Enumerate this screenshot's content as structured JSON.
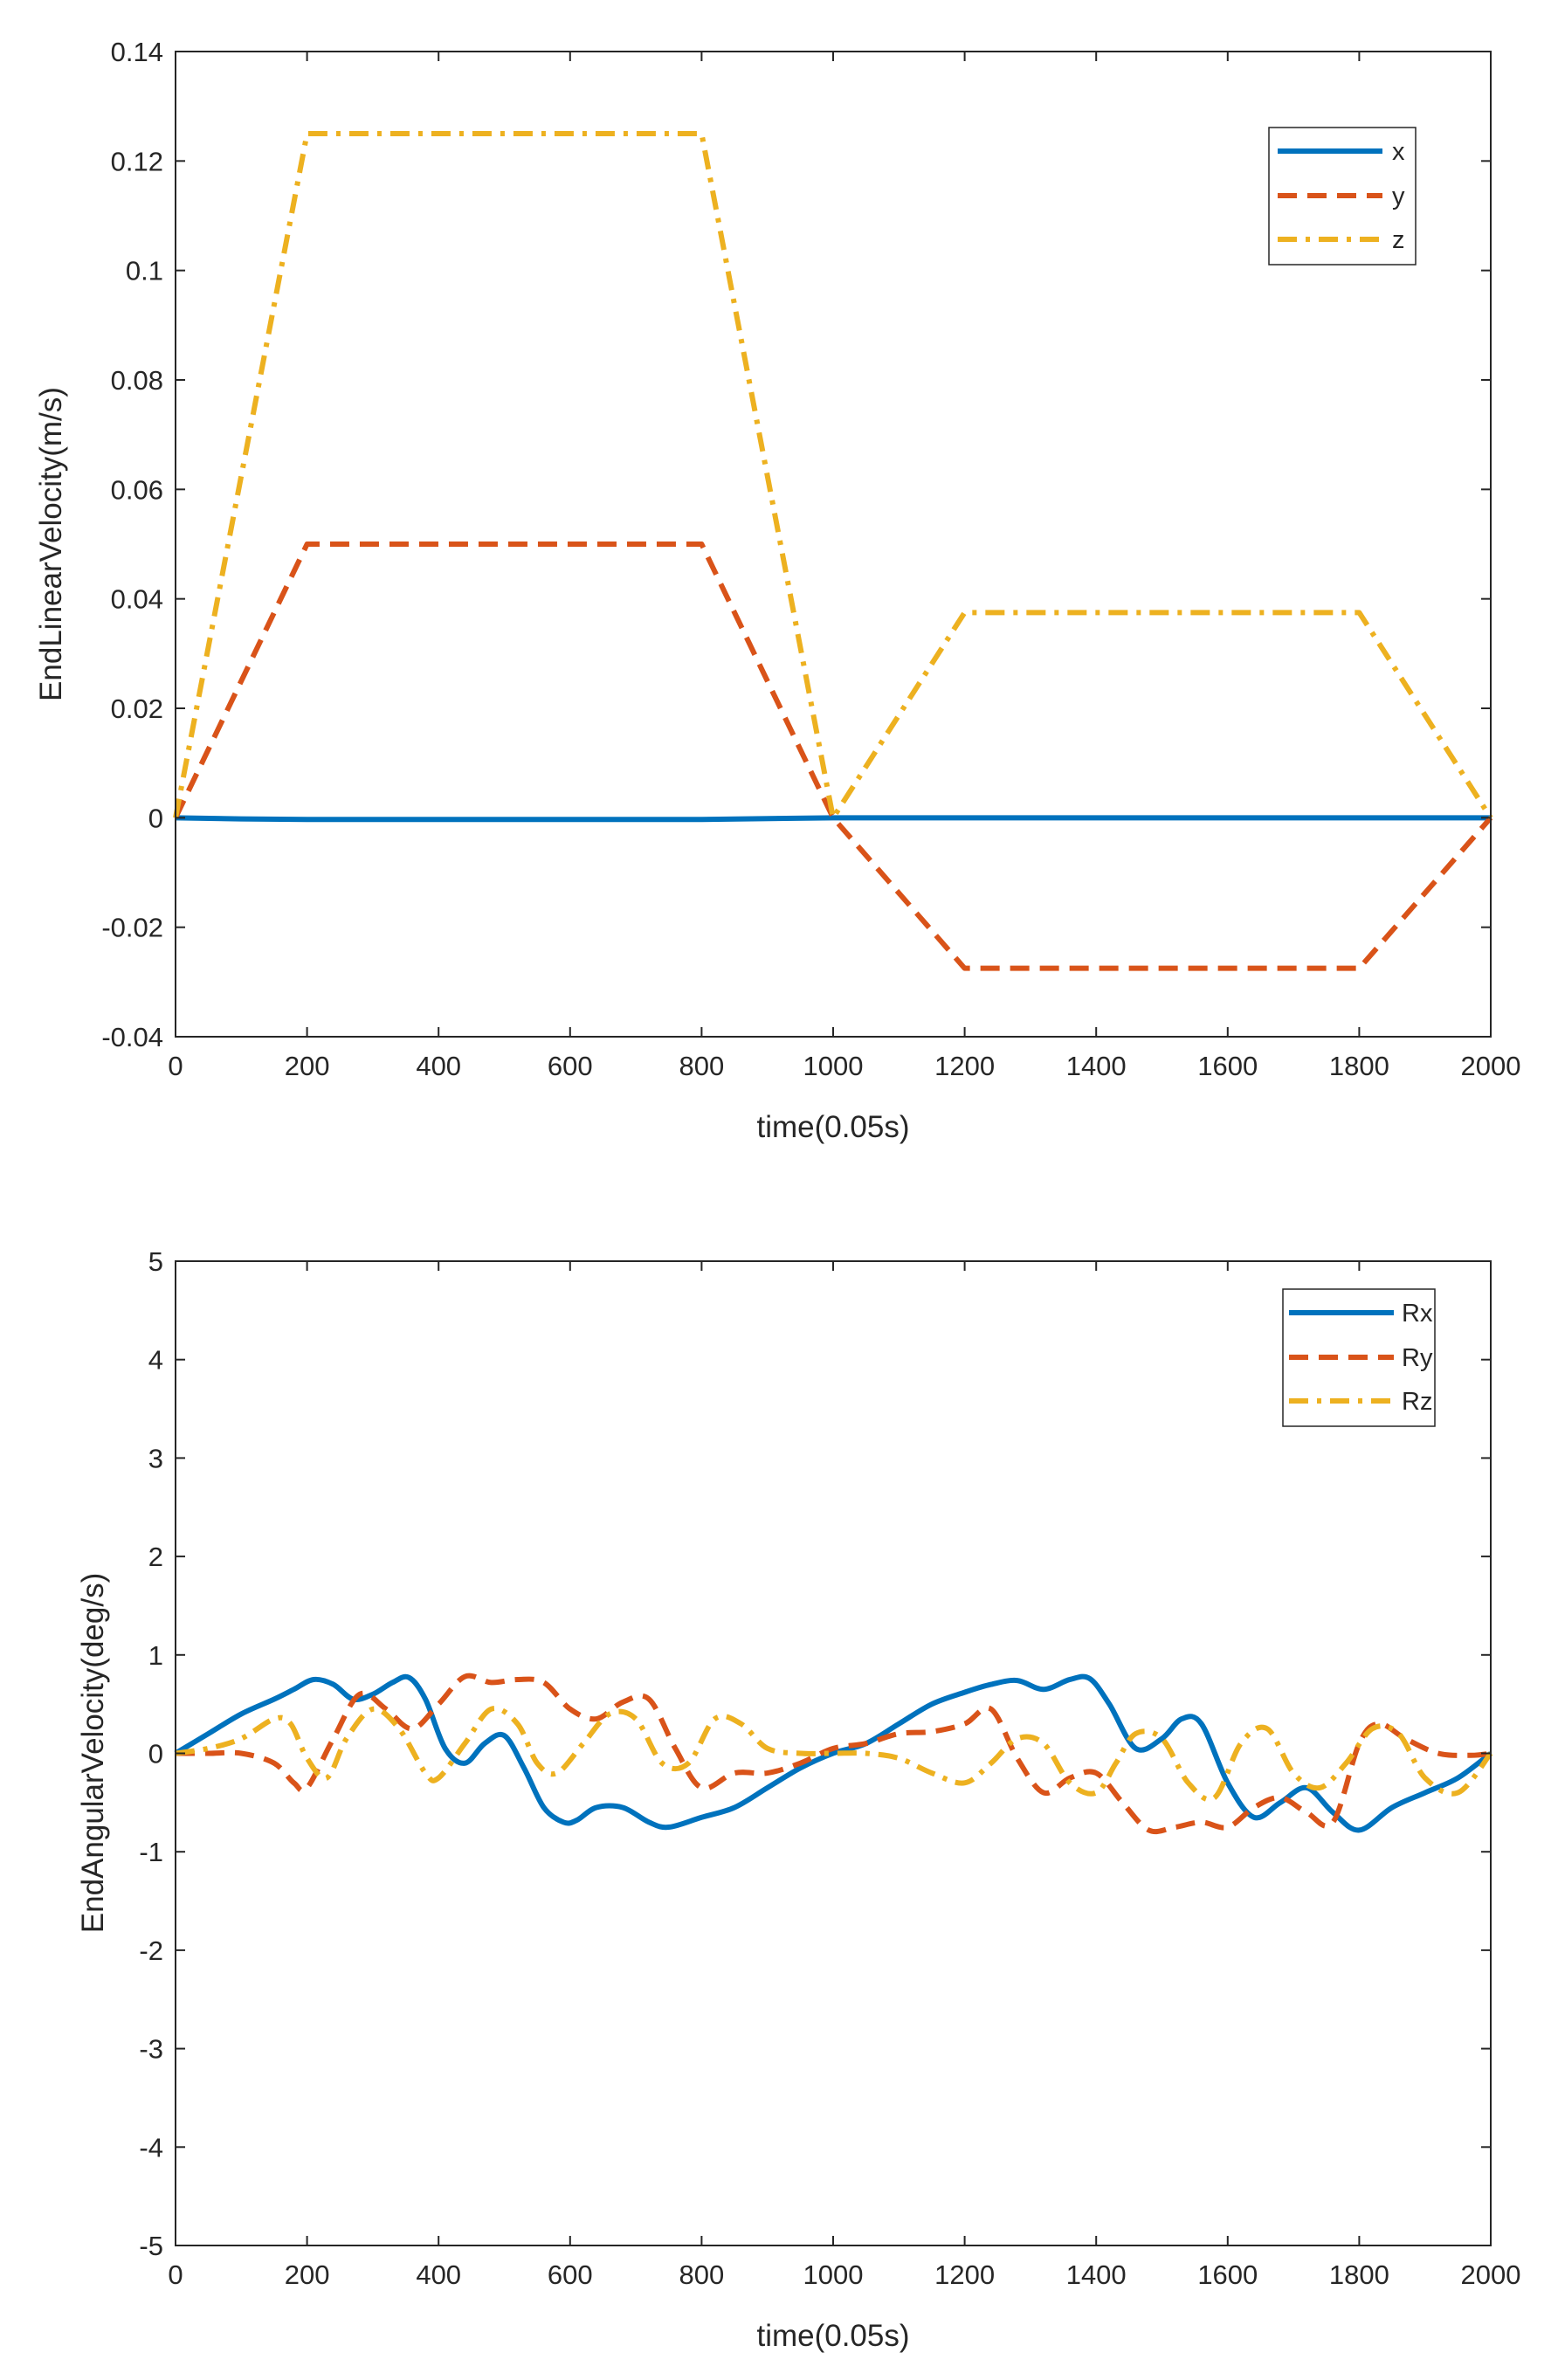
{
  "colors": {
    "blue": "#0072BD",
    "orange": "#D95319",
    "yellow": "#EDB120",
    "axis": "#262626"
  },
  "chart_data": [
    {
      "type": "line",
      "xlabel": "time(0.05s)",
      "ylabel": "EndLinearVelocity(m/s)",
      "xlim": [
        0,
        2000
      ],
      "ylim": [
        -0.04,
        0.14
      ],
      "grid": false,
      "legend_position": "top-right",
      "xticks": [
        0,
        200,
        400,
        600,
        800,
        1000,
        1200,
        1400,
        1600,
        1800,
        2000
      ],
      "yticks": [
        -0.04,
        -0.02,
        0,
        0.02,
        0.04,
        0.06,
        0.08,
        0.1,
        0.12,
        0.14
      ],
      "xtick_labels": [
        "0",
        "200",
        "400",
        "600",
        "800",
        "1000",
        "1200",
        "1400",
        "1600",
        "1800",
        "2000"
      ],
      "ytick_labels": [
        "-0.04",
        "-0.02",
        "0",
        "0.02",
        "0.04",
        "0.06",
        "0.08",
        "0.1",
        "0.12",
        "0.14"
      ],
      "series": [
        {
          "name": "x",
          "color": "#0072BD",
          "style": "solid",
          "x": [
            0,
            100,
            200,
            500,
            800,
            1000,
            1500,
            2000
          ],
          "y": [
            0,
            -0.0002,
            -0.0003,
            -0.0003,
            -0.0003,
            0,
            0,
            0
          ]
        },
        {
          "name": "y",
          "color": "#D95319",
          "style": "dashed",
          "x": [
            0,
            200,
            800,
            1000,
            1200,
            1800,
            2000
          ],
          "y": [
            0,
            0.05,
            0.05,
            0,
            -0.0275,
            -0.0275,
            0
          ]
        },
        {
          "name": "z",
          "color": "#EDB120",
          "style": "dashdot",
          "x": [
            0,
            200,
            800,
            1000,
            1200,
            1800,
            2000
          ],
          "y": [
            0,
            0.125,
            0.125,
            0,
            0.0375,
            0.0375,
            0
          ]
        }
      ]
    },
    {
      "type": "line",
      "xlabel": "time(0.05s)",
      "ylabel": "EndAngularVelocity(deg/s)",
      "xlim": [
        0,
        2000
      ],
      "ylim": [
        -5,
        5
      ],
      "grid": false,
      "legend_position": "top-right",
      "xticks": [
        0,
        200,
        400,
        600,
        800,
        1000,
        1200,
        1400,
        1600,
        1800,
        2000
      ],
      "yticks": [
        -5,
        -4,
        -3,
        -2,
        -1,
        0,
        1,
        2,
        3,
        4,
        5
      ],
      "xtick_labels": [
        "0",
        "200",
        "400",
        "600",
        "800",
        "1000",
        "1200",
        "1400",
        "1600",
        "1800",
        "2000"
      ],
      "ytick_labels": [
        "-5",
        "-4",
        "-3",
        "-2",
        "-1",
        "0",
        "1",
        "2",
        "3",
        "4",
        "5"
      ],
      "series": [
        {
          "name": "Rx",
          "color": "#0072BD",
          "style": "solid",
          "x": [
            0,
            50,
            100,
            150,
            180,
            210,
            240,
            270,
            300,
            330,
            355,
            380,
            410,
            440,
            470,
            500,
            530,
            560,
            590,
            610,
            640,
            680,
            720,
            750,
            800,
            850,
            900,
            950,
            1000,
            1050,
            1100,
            1150,
            1200,
            1240,
            1280,
            1320,
            1360,
            1390,
            1420,
            1460,
            1500,
            1530,
            1560,
            1600,
            1640,
            1680,
            1720,
            1760,
            1800,
            1850,
            1900,
            1950,
            2000
          ],
          "y": [
            0,
            0.2,
            0.4,
            0.55,
            0.65,
            0.75,
            0.7,
            0.55,
            0.6,
            0.72,
            0.77,
            0.55,
            0.05,
            -0.1,
            0.1,
            0.18,
            -0.15,
            -0.55,
            -0.7,
            -0.68,
            -0.55,
            -0.55,
            -0.7,
            -0.75,
            -0.65,
            -0.55,
            -0.35,
            -0.15,
            0,
            0.1,
            0.3,
            0.5,
            0.62,
            0.7,
            0.74,
            0.65,
            0.75,
            0.76,
            0.5,
            0.05,
            0.15,
            0.35,
            0.3,
            -0.3,
            -0.65,
            -0.5,
            -0.35,
            -0.6,
            -0.78,
            -0.55,
            -0.4,
            -0.25,
            0
          ]
        },
        {
          "name": "Ry",
          "color": "#D95319",
          "style": "dashed",
          "x": [
            0,
            50,
            100,
            150,
            180,
            200,
            240,
            280,
            320,
            360,
            400,
            440,
            480,
            520,
            560,
            600,
            640,
            680,
            720,
            760,
            800,
            850,
            900,
            950,
            1000,
            1050,
            1100,
            1150,
            1200,
            1240,
            1280,
            1320,
            1360,
            1400,
            1440,
            1480,
            1520,
            1560,
            1600,
            1640,
            1680,
            1720,
            1760,
            1800,
            1830,
            1870,
            1920,
            1970,
            2000
          ],
          "y": [
            0,
            0,
            0,
            -0.1,
            -0.3,
            -0.35,
            0.15,
            0.6,
            0.45,
            0.25,
            0.5,
            0.78,
            0.72,
            0.75,
            0.72,
            0.45,
            0.35,
            0.52,
            0.55,
            0.05,
            -0.35,
            -0.2,
            -0.2,
            -0.1,
            0.05,
            0.1,
            0.2,
            0.22,
            0.3,
            0.45,
            -0.05,
            -0.4,
            -0.25,
            -0.2,
            -0.5,
            -0.78,
            -0.75,
            -0.7,
            -0.75,
            -0.55,
            -0.45,
            -0.6,
            -0.7,
            0.1,
            0.3,
            0.15,
            0,
            -0.02,
            0
          ]
        },
        {
          "name": "Rz",
          "color": "#EDB120",
          "style": "dashdot",
          "x": [
            0,
            50,
            100,
            150,
            175,
            200,
            230,
            260,
            300,
            340,
            380,
            400,
            440,
            480,
            520,
            550,
            580,
            620,
            660,
            700,
            740,
            780,
            820,
            860,
            900,
            950,
            1000,
            1050,
            1100,
            1150,
            1200,
            1240,
            1280,
            1320,
            1360,
            1400,
            1430,
            1460,
            1500,
            1540,
            1580,
            1620,
            1660,
            1700,
            1740,
            1780,
            1820,
            1860,
            1900,
            1950,
            2000
          ],
          "y": [
            0,
            0.05,
            0.15,
            0.35,
            0.3,
            -0.05,
            -0.25,
            0.15,
            0.45,
            0.25,
            -0.2,
            -0.25,
            0.1,
            0.45,
            0.3,
            -0.1,
            -0.2,
            0.1,
            0.4,
            0.35,
            -0.1,
            -0.1,
            0.35,
            0.3,
            0.05,
            0,
            0,
            0,
            -0.05,
            -0.2,
            -0.3,
            -0.1,
            0.15,
            0.1,
            -0.3,
            -0.4,
            -0.1,
            0.2,
            0.15,
            -0.3,
            -0.45,
            0.1,
            0.25,
            -0.2,
            -0.35,
            -0.1,
            0.25,
            0.2,
            -0.25,
            -0.4,
            0
          ]
        }
      ]
    }
  ]
}
